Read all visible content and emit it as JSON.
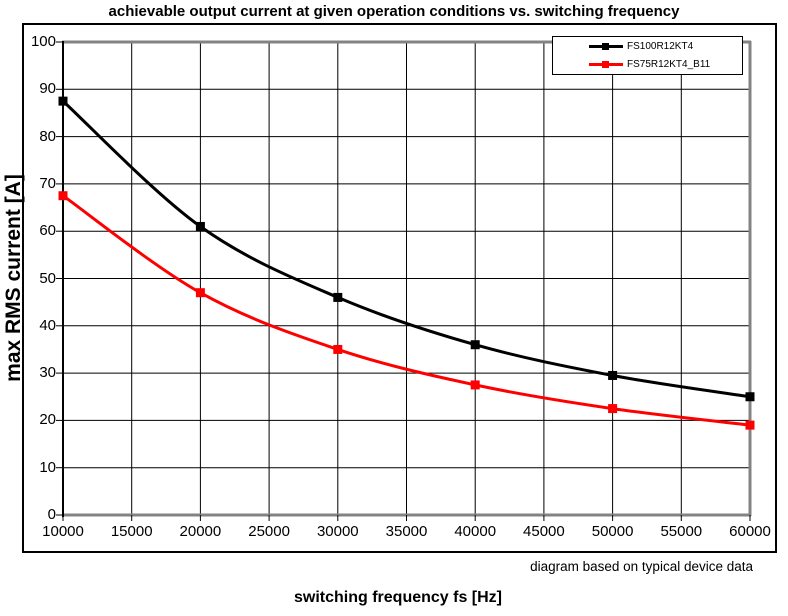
{
  "footer_note": "diagram based on typical device data",
  "chart_data": {
    "type": "line",
    "title": "achievable output current at given operation conditions vs. switching frequency",
    "xlabel": "switching frequency fs [Hz]",
    "ylabel": "max RMS current [A]",
    "x": [
      10000,
      20000,
      30000,
      40000,
      50000,
      60000
    ],
    "series": [
      {
        "name": "FS100R12KT4",
        "color": "#000000",
        "marker": "square",
        "values": [
          87.5,
          61,
          46,
          36,
          29.5,
          25
        ]
      },
      {
        "name": "FS75R12KT4_B11",
        "color": "#ff0000",
        "marker": "square",
        "values": [
          67.5,
          47,
          35,
          27.5,
          22.5,
          19
        ]
      }
    ],
    "xlim": [
      10000,
      60000
    ],
    "ylim": [
      0,
      100
    ],
    "x_ticks": [
      10000,
      15000,
      20000,
      25000,
      30000,
      35000,
      40000,
      45000,
      50000,
      55000,
      60000
    ],
    "y_ticks": [
      0,
      10,
      20,
      30,
      40,
      50,
      60,
      70,
      80,
      90,
      100
    ],
    "grid": true,
    "line_smooth": true,
    "legend_position": "top-right"
  },
  "styles": {
    "frame_color": "#848284",
    "grid_color": "#000000",
    "axis_color": "#000000"
  }
}
